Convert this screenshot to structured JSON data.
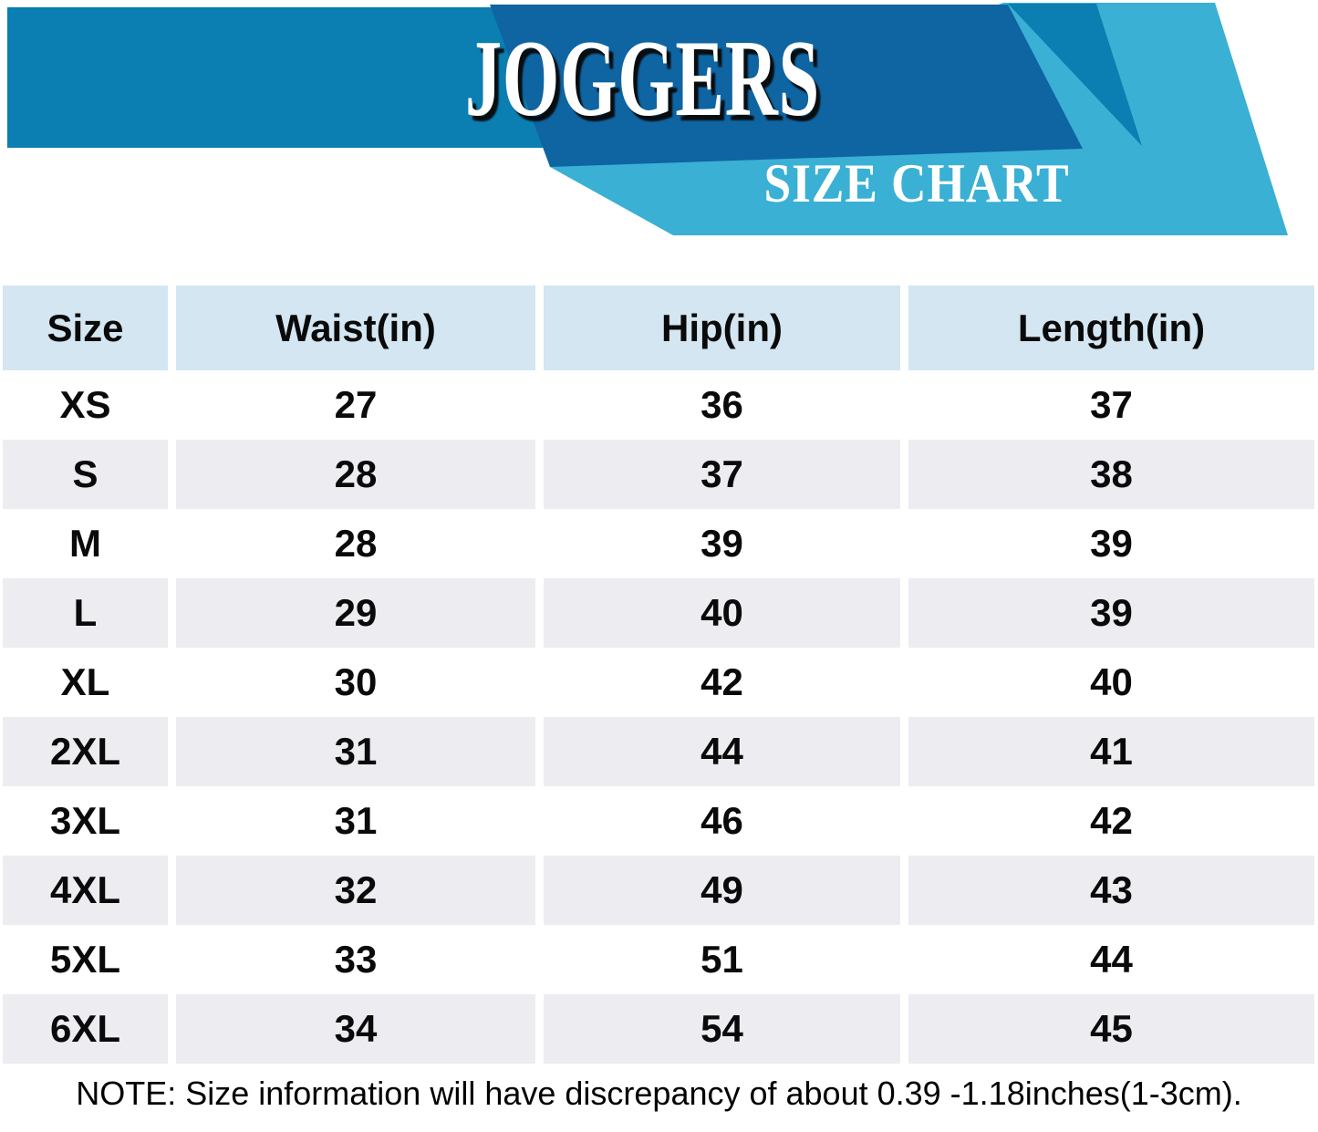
{
  "banner": {
    "title": "JOGGERS",
    "subtitle": "SIZE CHART"
  },
  "colors": {
    "band_blue": "#0b7eb2",
    "dark_blue": "#0f64a2",
    "light_blue": "#3ab0d4",
    "table_header_bg": "#d3e6f1",
    "row_alt_bg": "#ececf1",
    "text_black": "#0a0a0a",
    "title_white": "#ffffff"
  },
  "table": {
    "headers": [
      "Size",
      "Waist(in)",
      "Hip(in)",
      "Length(in)"
    ],
    "rows": [
      {
        "size": "XS",
        "waist": "27",
        "hip": "36",
        "length": "37"
      },
      {
        "size": "S",
        "waist": "28",
        "hip": "37",
        "length": "38"
      },
      {
        "size": "M",
        "waist": "28",
        "hip": "39",
        "length": "39"
      },
      {
        "size": "L",
        "waist": "29",
        "hip": "40",
        "length": "39"
      },
      {
        "size": "XL",
        "waist": "30",
        "hip": "42",
        "length": "40"
      },
      {
        "size": "2XL",
        "waist": "31",
        "hip": "44",
        "length": "41"
      },
      {
        "size": "3XL",
        "waist": "31",
        "hip": "46",
        "length": "42"
      },
      {
        "size": "4XL",
        "waist": "32",
        "hip": "49",
        "length": "43"
      },
      {
        "size": "5XL",
        "waist": "33",
        "hip": "51",
        "length": "44"
      },
      {
        "size": "6XL",
        "waist": "34",
        "hip": "54",
        "length": "45"
      }
    ]
  },
  "note": "NOTE: Size information will have discrepancy of about 0.39 -1.18inches(1-3cm).",
  "chart_data": {
    "type": "table",
    "title": "JOGGERS SIZE CHART",
    "columns": [
      "Size",
      "Waist(in)",
      "Hip(in)",
      "Length(in)"
    ],
    "rows": [
      [
        "XS",
        27,
        36,
        37
      ],
      [
        "S",
        28,
        37,
        38
      ],
      [
        "M",
        28,
        39,
        39
      ],
      [
        "L",
        29,
        40,
        39
      ],
      [
        "XL",
        30,
        42,
        40
      ],
      [
        "2XL",
        31,
        44,
        41
      ],
      [
        "3XL",
        31,
        46,
        42
      ],
      [
        "4XL",
        32,
        49,
        43
      ],
      [
        "5XL",
        33,
        51,
        44
      ],
      [
        "6XL",
        34,
        54,
        45
      ]
    ]
  }
}
